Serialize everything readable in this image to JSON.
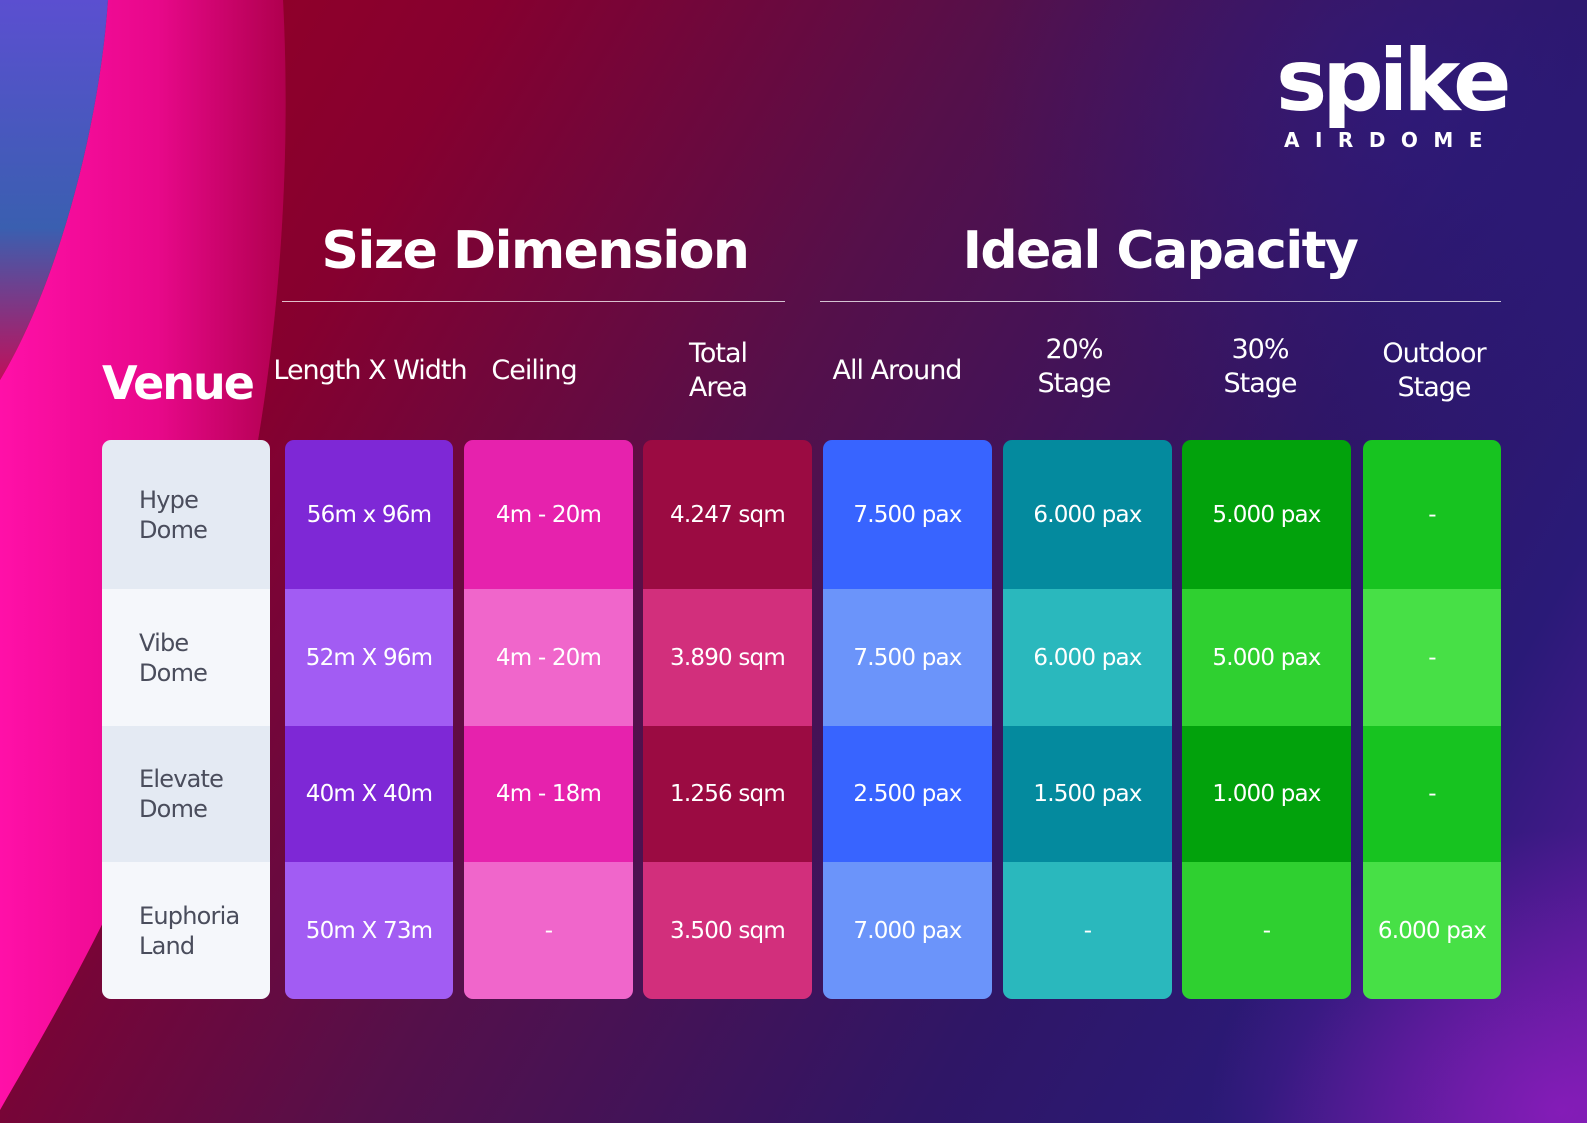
{
  "logo": {
    "wordmark": "spike",
    "subtitle": "AIRDOME"
  },
  "sections": {
    "size_title": "Size Dimension",
    "capacity_title": "Ideal Capacity"
  },
  "headers": {
    "venue": "Venue",
    "length_width": "Length X Width",
    "ceiling": "Ceiling",
    "total_area": [
      "Total",
      "Area"
    ],
    "all_around": "All Around",
    "stage_20": [
      "20%",
      "Stage"
    ],
    "stage_30": [
      "30%",
      "Stage"
    ],
    "outdoor_stage": [
      "Outdoor",
      "Stage"
    ]
  },
  "rows": [
    {
      "venue": [
        "Hype",
        "Dome"
      ],
      "length_width": "56m x 96m",
      "ceiling": "4m - 20m",
      "total_area": "4.247 sqm",
      "all_around": "7.500 pax",
      "stage_20": "6.000 pax",
      "stage_30": "5.000 pax",
      "outdoor_stage": "-"
    },
    {
      "venue": [
        "Vibe",
        "Dome"
      ],
      "length_width": "52m X 96m",
      "ceiling": "4m - 20m",
      "total_area": "3.890 sqm",
      "all_around": "7.500 pax",
      "stage_20": "6.000 pax",
      "stage_30": "5.000 pax",
      "outdoor_stage": "-"
    },
    {
      "venue": [
        "Elevate",
        "Dome"
      ],
      "length_width": "40m X 40m",
      "ceiling": "4m - 18m",
      "total_area": "1.256 sqm",
      "all_around": "2.500 pax",
      "stage_20": "1.500 pax",
      "stage_30": "1.000 pax",
      "outdoor_stage": "-"
    },
    {
      "venue": [
        "Euphoria",
        "Land"
      ],
      "length_width": "50m X 73m",
      "ceiling": "-",
      "total_area": "3.500 sqm",
      "all_around": "7.000 pax",
      "stage_20": "-",
      "stage_30": "-",
      "outdoor_stage": "6.000 pax"
    }
  ],
  "colors": {
    "venue": [
      "#e4eaf3",
      "#f5f7fb",
      "#e4eaf3",
      "#f5f7fb"
    ],
    "length_width": [
      "#7e28d6",
      "#a25cf3",
      "#7e28d6",
      "#a25cf3"
    ],
    "ceiling": [
      "#e622ad",
      "#f066cb",
      "#e622ad",
      "#f066cb"
    ],
    "total_area": [
      "#9b0b42",
      "#d22f7c",
      "#9b0b42",
      "#d22f7c"
    ],
    "all_around": [
      "#3864ff",
      "#6b94fa",
      "#3864ff",
      "#6b94fa"
    ],
    "stage_20": [
      "#048a9e",
      "#2ab8bd",
      "#048a9e",
      "#2ab8bd"
    ],
    "stage_30": [
      "#02a20c",
      "#2fd030",
      "#02a20c",
      "#2fd030"
    ],
    "outdoor_stage": [
      "#17c320",
      "#47e046",
      "#17c320",
      "#47e046"
    ]
  }
}
